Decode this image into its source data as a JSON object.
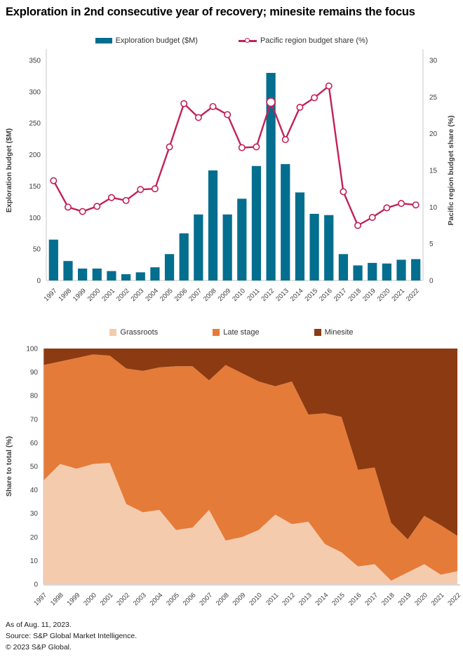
{
  "title": "Exploration in 2nd consecutive year of recovery; minesite remains the focus",
  "footer": {
    "as_of": "As of Aug. 11, 2023.",
    "source": "Source: S&P Global Market Intelligence.",
    "copyright": "© 2023 S&P Global."
  },
  "colors": {
    "bar": "#046e8f",
    "line": "#c22158",
    "grassroots": "#f5cbae",
    "late_stage": "#e57b39",
    "minesite": "#8b3a12",
    "axis_line": "#c9c9c9",
    "tick_text": "#3d3d3d"
  },
  "chart_data": [
    {
      "type": "bar",
      "subtype": "bar-line combo, dual y-axes",
      "legend_position": "top",
      "grid": false,
      "categories": [
        1997,
        1998,
        1999,
        2000,
        2001,
        2002,
        2003,
        2004,
        2005,
        2006,
        2007,
        2008,
        2009,
        2010,
        2011,
        2012,
        2013,
        2014,
        2015,
        2016,
        2017,
        2018,
        2019,
        2020,
        2021,
        2022
      ],
      "series": [
        {
          "name": "Exploration budget ($M)",
          "kind": "bar",
          "axis": "left",
          "color": "#046e8f",
          "values": [
            65,
            31,
            19,
            19,
            15,
            10,
            13,
            21,
            42,
            75,
            105,
            175,
            105,
            130,
            182,
            330,
            185,
            140,
            106,
            104,
            42,
            24,
            28,
            27,
            33,
            34
          ]
        },
        {
          "name": "Pacific region budget share (%)",
          "kind": "line",
          "axis": "right",
          "color": "#c22158",
          "marker": "open-circle",
          "highlight_index": 15,
          "values": [
            13.6,
            10.0,
            9.4,
            10.1,
            11.3,
            10.9,
            12.4,
            12.5,
            18.2,
            24.1,
            22.2,
            23.7,
            22.6,
            18.1,
            18.2,
            24.3,
            19.2,
            23.6,
            24.9,
            26.5,
            12.1,
            7.5,
            8.6,
            9.9,
            10.5,
            10.3
          ]
        }
      ],
      "left_axis": {
        "label": "Exploration budget ($M)",
        "min": 0,
        "max": 350,
        "step": 50
      },
      "right_axis": {
        "label": "Pacific region budget share (%)",
        "min": 0,
        "max": 30,
        "step": 5
      }
    },
    {
      "type": "area",
      "stacked": true,
      "percent": true,
      "legend_position": "top",
      "grid": false,
      "categories": [
        1997,
        1998,
        1999,
        2000,
        2001,
        2002,
        2003,
        2004,
        2005,
        2006,
        2007,
        2008,
        2009,
        2010,
        2011,
        2012,
        2013,
        2014,
        2015,
        2016,
        2017,
        2018,
        2019,
        2020,
        2021,
        2022
      ],
      "series": [
        {
          "name": "Grassroots",
          "color": "#f5cbae",
          "values": [
            44,
            51,
            49,
            51,
            51.5,
            34,
            30.5,
            31.5,
            23,
            24,
            31.5,
            18.5,
            20,
            23,
            29.5,
            25.5,
            26.5,
            17,
            13.5,
            7.5,
            8.5,
            1.5,
            5,
            8.5,
            4,
            5.5
          ]
        },
        {
          "name": "Late stage",
          "color": "#e57b39",
          "values": [
            49,
            43.5,
            47,
            46.5,
            45.5,
            57.5,
            60,
            60.5,
            69.5,
            68.5,
            55,
            74.5,
            69.5,
            63,
            54.5,
            60.5,
            45.5,
            55.5,
            57.5,
            41,
            41,
            24.5,
            14,
            20.5,
            21,
            15
          ]
        },
        {
          "name": "Minesite",
          "color": "#8b3a12",
          "values": [
            7,
            5.5,
            4,
            2.5,
            3,
            8.5,
            9.5,
            8,
            7.5,
            7.5,
            13.5,
            7,
            10.5,
            14,
            16,
            14,
            28,
            27.5,
            29,
            51.5,
            50.5,
            74,
            81,
            71,
            75,
            79.5
          ]
        }
      ],
      "y_axis": {
        "label": "Share to total (%)",
        "min": 0,
        "max": 100,
        "step": 10
      }
    }
  ]
}
